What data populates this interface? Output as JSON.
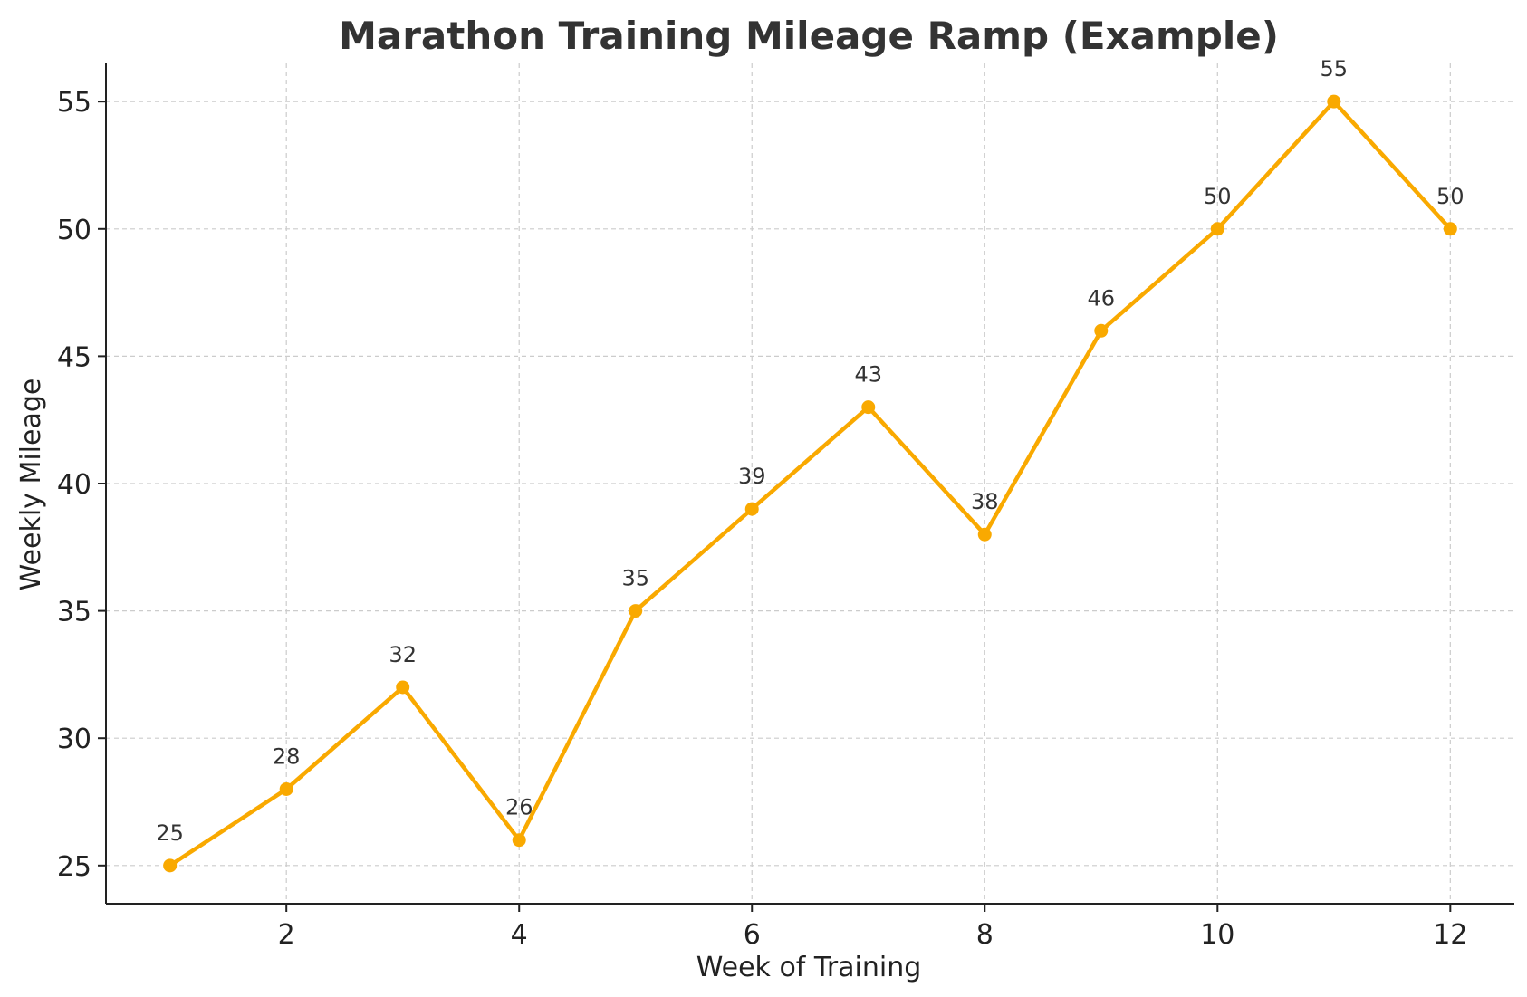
{
  "chart_data": {
    "type": "line",
    "title": "Marathon Training Mileage Ramp (Example)",
    "xlabel": "Week of Training",
    "ylabel": "Weekly Mileage",
    "x": [
      1,
      2,
      3,
      4,
      5,
      6,
      7,
      8,
      9,
      10,
      11,
      12
    ],
    "series": [
      {
        "values": [
          25,
          28,
          32,
          26,
          35,
          39,
          43,
          38,
          46,
          50,
          55,
          50
        ],
        "color": "#F9A900",
        "marker": "circle"
      }
    ],
    "data_labels": [
      "25",
      "28",
      "32",
      "26",
      "35",
      "39",
      "43",
      "38",
      "46",
      "50",
      "55",
      "50"
    ],
    "x_ticks": [
      2,
      4,
      6,
      8,
      10,
      12
    ],
    "x_tick_labels": [
      "2",
      "4",
      "6",
      "8",
      "10",
      "12"
    ],
    "y_ticks": [
      25,
      30,
      35,
      40,
      45,
      50,
      55
    ],
    "y_tick_labels": [
      "25",
      "30",
      "35",
      "40",
      "45",
      "50",
      "55"
    ],
    "xlim": [
      0.45,
      12.55
    ],
    "ylim": [
      23.5,
      56.5
    ],
    "grid": true,
    "grid_style": "dashed"
  }
}
